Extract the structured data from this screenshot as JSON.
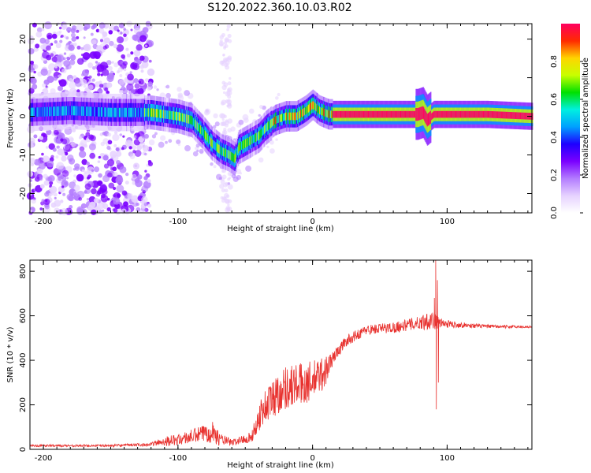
{
  "title": "S120.2022.360.10.03.R02",
  "colors": {
    "snr_line": "#e8322f",
    "frame": "#000000",
    "colormap": [
      "#ffffff",
      "#e6d2ff",
      "#b37bff",
      "#7a00ff",
      "#1e00ff",
      "#00a0ff",
      "#00f0e0",
      "#00e000",
      "#c8ff00",
      "#ffd400",
      "#ff2a00",
      "#ff0060"
    ]
  },
  "chart_data": [
    {
      "type": "heatmap",
      "xlabel": "Height of straight line (km)",
      "ylabel": "Frequency (Hz)",
      "xlim": [
        -210,
        163
      ],
      "ylim": [
        -25,
        24
      ],
      "xticks": [
        -200,
        -100,
        0,
        100
      ],
      "yticks": [
        -20,
        -10,
        0,
        10,
        20
      ],
      "colorbar": {
        "label": "Normalized spectral amplitude",
        "range": [
          0,
          1
        ],
        "ticks": [
          "0.0",
          "0.2",
          "0.4",
          "0.6",
          "0.8"
        ],
        "tick_values": [
          0,
          0.2,
          0.4,
          0.6,
          0.8
        ]
      },
      "ridge": [
        {
          "x": -210,
          "y": 1
        },
        {
          "x": -180,
          "y": 1.5
        },
        {
          "x": -150,
          "y": 1
        },
        {
          "x": -130,
          "y": 1
        },
        {
          "x": -120,
          "y": 1
        },
        {
          "x": -110,
          "y": 0.5
        },
        {
          "x": -100,
          "y": 0
        },
        {
          "x": -90,
          "y": -1
        },
        {
          "x": -82,
          "y": -4
        },
        {
          "x": -75,
          "y": -7
        },
        {
          "x": -68,
          "y": -9
        },
        {
          "x": -62,
          "y": -10
        },
        {
          "x": -58,
          "y": -11
        },
        {
          "x": -55,
          "y": -8
        },
        {
          "x": -50,
          "y": -7
        },
        {
          "x": -45,
          "y": -6
        },
        {
          "x": -40,
          "y": -5
        },
        {
          "x": -35,
          "y": -3
        },
        {
          "x": -28,
          "y": -1
        },
        {
          "x": -20,
          "y": 0
        },
        {
          "x": -12,
          "y": 0
        },
        {
          "x": -5,
          "y": 1.5
        },
        {
          "x": 0,
          "y": 3
        },
        {
          "x": 5,
          "y": 1.5
        },
        {
          "x": 12,
          "y": 0.5
        },
        {
          "x": 20,
          "y": 0.5
        },
        {
          "x": 60,
          "y": 0.5
        },
        {
          "x": 78,
          "y": 0.5
        },
        {
          "x": 82,
          "y": 1
        },
        {
          "x": 85,
          "y": -1
        },
        {
          "x": 90,
          "y": 0.5
        },
        {
          "x": 130,
          "y": 0.5
        },
        {
          "x": 163,
          "y": 0
        }
      ]
    },
    {
      "type": "line",
      "xlabel": "Height of straight line (km)",
      "ylabel": "SNR (10 * v/v)",
      "xlim": [
        -210,
        163
      ],
      "ylim": [
        0,
        850
      ],
      "xticks": [
        -200,
        -100,
        0,
        100
      ],
      "yticks": [
        0,
        200,
        400,
        600,
        800
      ],
      "envelope": [
        {
          "x": -210,
          "base": 15,
          "amp": 10
        },
        {
          "x": -150,
          "base": 15,
          "amp": 10
        },
        {
          "x": -120,
          "base": 20,
          "amp": 15
        },
        {
          "x": -110,
          "base": 30,
          "amp": 45
        },
        {
          "x": -100,
          "base": 35,
          "amp": 50
        },
        {
          "x": -80,
          "base": 60,
          "amp": 80
        },
        {
          "x": -75,
          "base": 70,
          "amp": 120
        },
        {
          "x": -70,
          "base": 40,
          "amp": 60
        },
        {
          "x": -60,
          "base": 25,
          "amp": 30
        },
        {
          "x": -45,
          "base": 50,
          "amp": 50
        },
        {
          "x": -38,
          "base": 150,
          "amp": 150
        },
        {
          "x": -30,
          "base": 200,
          "amp": 180
        },
        {
          "x": -20,
          "base": 250,
          "amp": 200
        },
        {
          "x": -10,
          "base": 260,
          "amp": 200
        },
        {
          "x": 0,
          "base": 280,
          "amp": 180
        },
        {
          "x": 10,
          "base": 330,
          "amp": 150
        },
        {
          "x": 15,
          "base": 400,
          "amp": 60
        },
        {
          "x": 25,
          "base": 480,
          "amp": 50
        },
        {
          "x": 40,
          "base": 530,
          "amp": 45
        },
        {
          "x": 60,
          "base": 540,
          "amp": 50
        },
        {
          "x": 80,
          "base": 560,
          "amp": 60
        },
        {
          "x": 88,
          "base": 570,
          "amp": 100
        },
        {
          "x": 95,
          "base": 560,
          "amp": 40
        },
        {
          "x": 110,
          "base": 555,
          "amp": 25
        },
        {
          "x": 130,
          "base": 550,
          "amp": 15
        },
        {
          "x": 163,
          "base": 548,
          "amp": 10
        }
      ],
      "spikes": [
        {
          "x": 90.5,
          "y": 680
        },
        {
          "x": 91.5,
          "y": 850
        },
        {
          "x": 92,
          "y": 180
        },
        {
          "x": 92.8,
          "y": 760
        },
        {
          "x": 93.5,
          "y": 300
        }
      ]
    }
  ]
}
